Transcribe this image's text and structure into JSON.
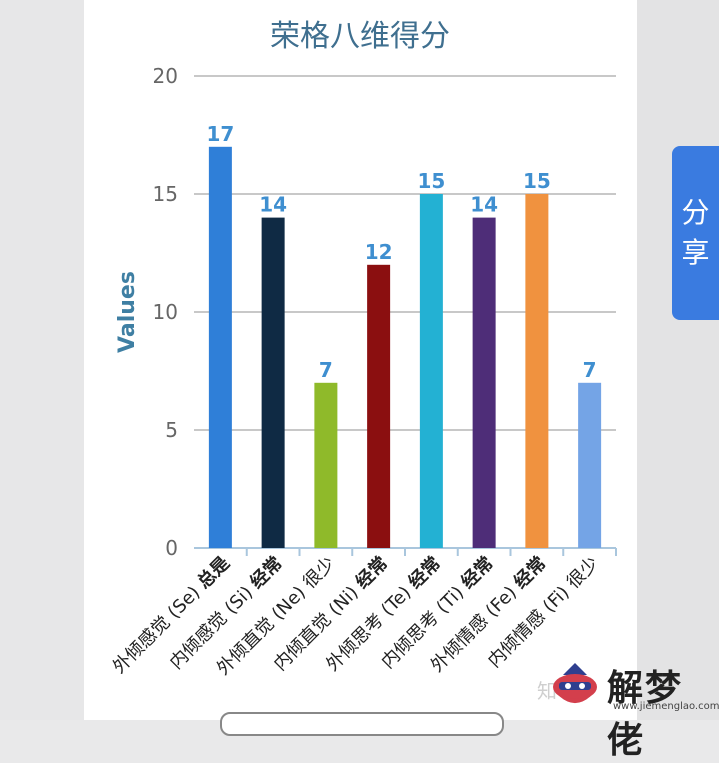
{
  "share": {
    "chars": [
      "分",
      "享"
    ]
  },
  "watermark": {
    "text": "解梦佬",
    "url": "www.jiemenglao.com",
    "faint": "知"
  },
  "chart_data": {
    "type": "bar",
    "title": "荣格八维得分",
    "ylabel": "Values",
    "xlabel": "",
    "ylim": [
      0,
      20
    ],
    "yticks": [
      0,
      5,
      10,
      15,
      20
    ],
    "grid": true,
    "categories": [
      {
        "name": "外倾感觉 (Se)",
        "tag": "总是"
      },
      {
        "name": "内倾感觉 (Si)",
        "tag": "经常"
      },
      {
        "name": "外倾直觉 (Ne)",
        "tag": "很少"
      },
      {
        "name": "内倾直觉 (Ni)",
        "tag": "经常"
      },
      {
        "name": "外倾思考 (Te)",
        "tag": "经常"
      },
      {
        "name": "内倾思考 (Ti)",
        "tag": "经常"
      },
      {
        "name": "外倾情感 (Fe)",
        "tag": "经常"
      },
      {
        "name": "内倾情感 (Fi)",
        "tag": "很少"
      }
    ],
    "values": [
      17,
      14,
      7,
      12,
      15,
      14,
      15,
      7
    ],
    "colors": [
      "#2f7fd8",
      "#0f2a44",
      "#8fba2a",
      "#8b0f10",
      "#23b1d3",
      "#4e2d78",
      "#f0923f",
      "#74a4e6"
    ],
    "tick_color": "#666666",
    "value_label_color": "#3f8fd0",
    "title_color": "#3f6f8f",
    "ylabel_color": "#3f7fa3"
  }
}
